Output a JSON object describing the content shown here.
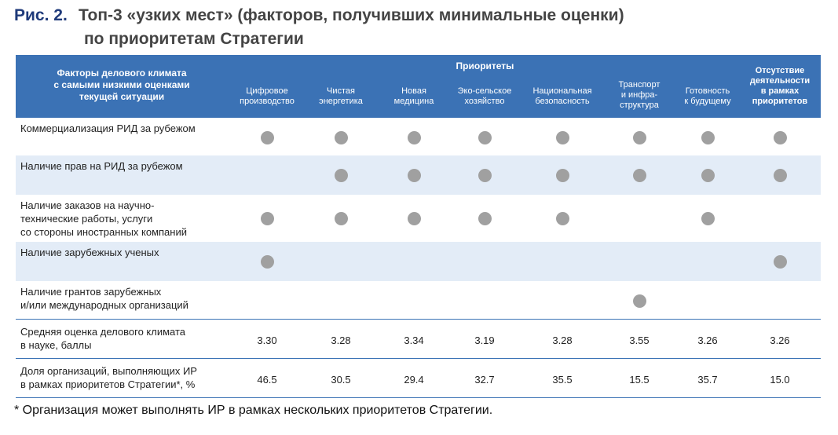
{
  "title": {
    "label": "Рис. 2.",
    "line1": "Топ-3 «узких мест» (факторов, получивших минимальные оценки)",
    "line2": "по приоритетам Стратегии"
  },
  "table": {
    "factor_header": "Факторы делового климата\nс самыми низкими оценками\nтекущей ситуации",
    "group_header": "Приоритеты",
    "columns": [
      "Цифровое\nпроизводство",
      "Чистая\nэнергетика",
      "Новая\nмедицина",
      "Эко-сельское\nхозяйство",
      "Национальная\nбезопасность",
      "Транспорт\nи инфра-\nструктура",
      "Готовность\nк будущему",
      "Отсутствие\nдеятельности\nв рамках\nприоритетов"
    ],
    "factor_rows": [
      {
        "label": "Коммерциализация  РИД за рубежом",
        "marks": [
          true,
          true,
          true,
          true,
          true,
          true,
          true,
          true
        ]
      },
      {
        "label": "Наличие прав на РИД за рубежом",
        "marks": [
          false,
          true,
          true,
          true,
          true,
          true,
          true,
          true
        ]
      },
      {
        "label": "Наличие заказов на научно-\nтехнические работы,  услуги\nсо стороны иностранных компаний",
        "marks": [
          true,
          true,
          true,
          true,
          true,
          false,
          true,
          false
        ]
      },
      {
        "label": "Наличие зарубежных ученых",
        "marks": [
          true,
          false,
          false,
          false,
          false,
          false,
          false,
          true
        ]
      },
      {
        "label": "Наличие грантов зарубежных\nи/или международных организаций",
        "marks": [
          false,
          false,
          false,
          false,
          false,
          true,
          false,
          false
        ]
      }
    ],
    "value_rows": [
      {
        "label": "Средняя оценка делового климата\nв науке, баллы",
        "values": [
          "3.30",
          "3.28",
          "3.34",
          "3.19",
          "3.28",
          "3.55",
          "3.26",
          "3.26"
        ]
      },
      {
        "label": "Доля организаций,  выполняющих  ИР\nв рамках приоритетов  Стратегии*,  %",
        "values": [
          "46.5",
          "30.5",
          "29.4",
          "32.7",
          "35.5",
          "15.5",
          "35.7",
          "15.0"
        ]
      }
    ]
  },
  "footnote": "* Организация может выполнять ИР в рамках нескольких приоритетов Стратегии."
}
